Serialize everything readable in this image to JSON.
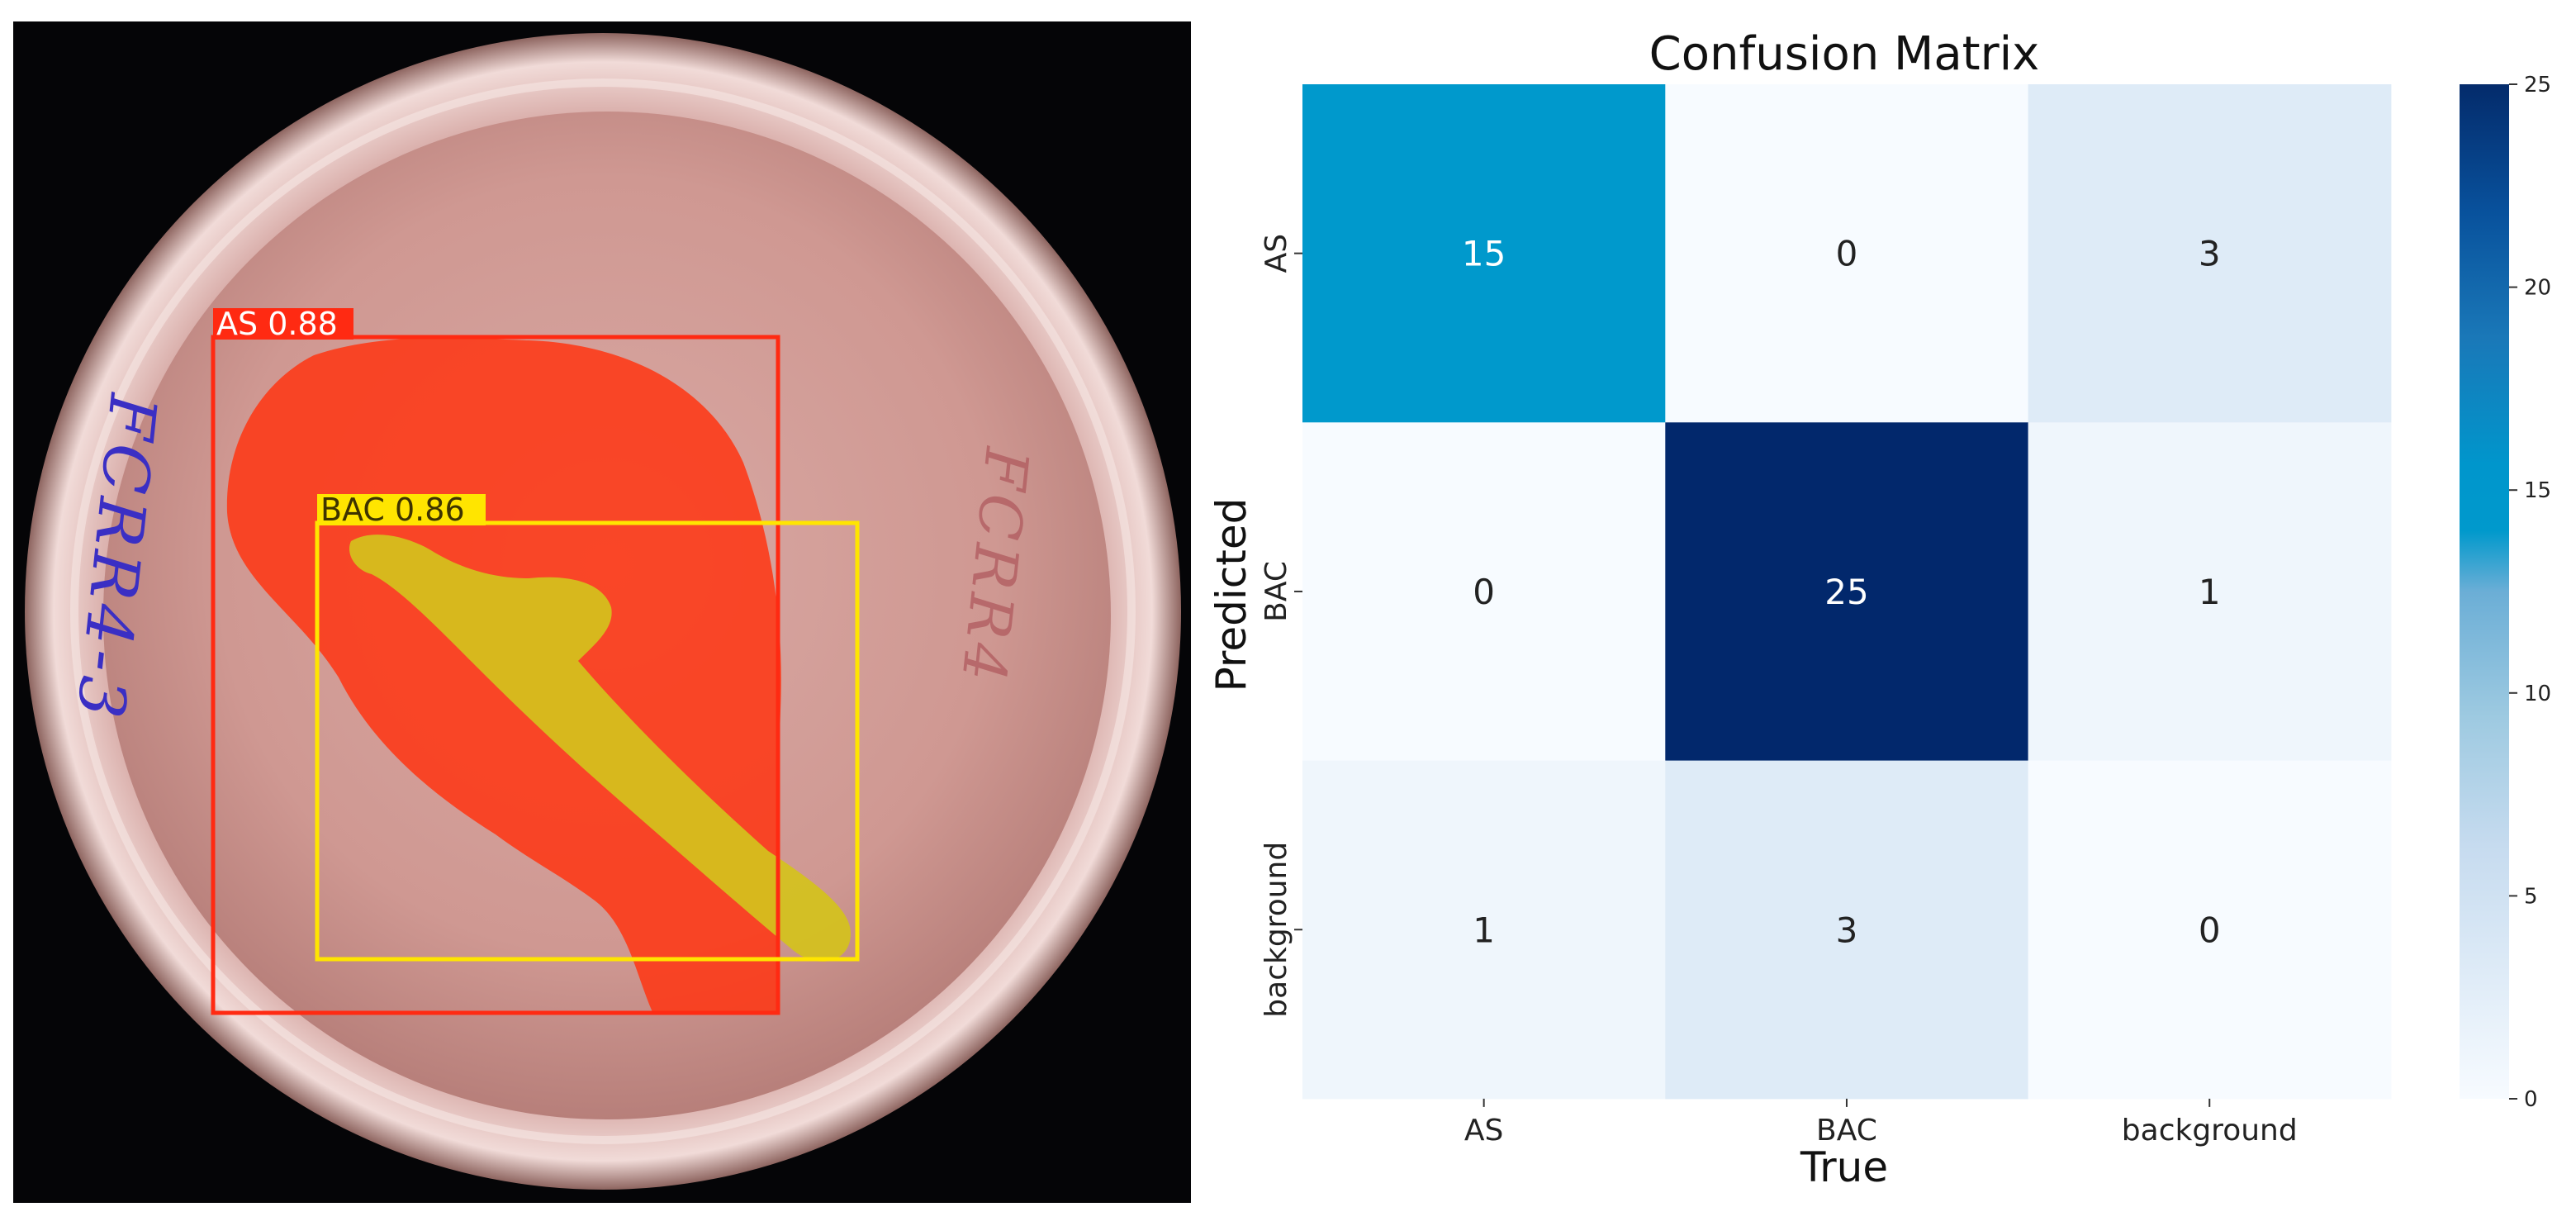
{
  "detection_panel": {
    "dish_writing_left": "FCRR4-3",
    "dish_writing_right": "FCRR4",
    "detections": [
      {
        "label": "AS 0.88",
        "class": "AS",
        "confidence": 0.88,
        "color": "#ff2a12"
      },
      {
        "label": "BAC 0.86",
        "class": "BAC",
        "confidence": 0.86,
        "color": "#ffe500"
      }
    ]
  },
  "chart_data": {
    "type": "heatmap",
    "title": "Confusion Matrix",
    "xlabel": "True",
    "ylabel": "Predicted",
    "x_categories": [
      "AS",
      "BAC",
      "background"
    ],
    "y_categories": [
      "AS",
      "BAC",
      "background"
    ],
    "values": [
      [
        15,
        0,
        3
      ],
      [
        0,
        25,
        1
      ],
      [
        1,
        3,
        0
      ]
    ],
    "colormap": "Blues",
    "colorbar": {
      "min": 0,
      "max": 25,
      "ticks": [
        0,
        5,
        10,
        15,
        20,
        25
      ]
    }
  }
}
